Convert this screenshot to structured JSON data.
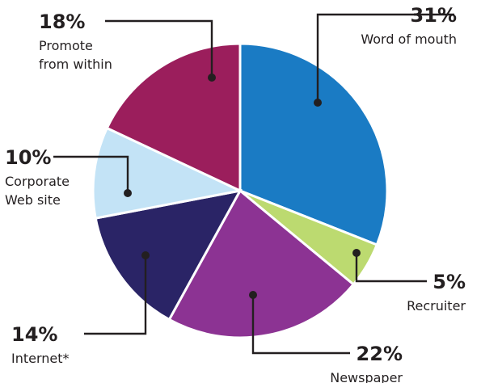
{
  "chart_data": {
    "type": "pie",
    "slices": [
      {
        "label_lines": [
          "Word of mouth"
        ],
        "value": 31,
        "value_label": "31%",
        "color": "#1a7bc4"
      },
      {
        "label_lines": [
          "Recruiter"
        ],
        "value": 5,
        "value_label": "5%",
        "color": "#bcda70"
      },
      {
        "label_lines": [
          "Newspaper"
        ],
        "value": 22,
        "value_label": "22%",
        "color": "#8c3393"
      },
      {
        "label_lines": [
          "Internet*"
        ],
        "value": 14,
        "value_label": "14%",
        "color": "#2a2466"
      },
      {
        "label_lines": [
          "Corporate",
          "Web site"
        ],
        "value": 10,
        "value_label": "10%",
        "color": "#c3e3f6"
      },
      {
        "label_lines": [
          "Promote",
          "from within"
        ],
        "value": 18,
        "value_label": "18%",
        "color": "#9b1e5c"
      }
    ],
    "start": "12 o'clock",
    "direction": "clockwise"
  }
}
